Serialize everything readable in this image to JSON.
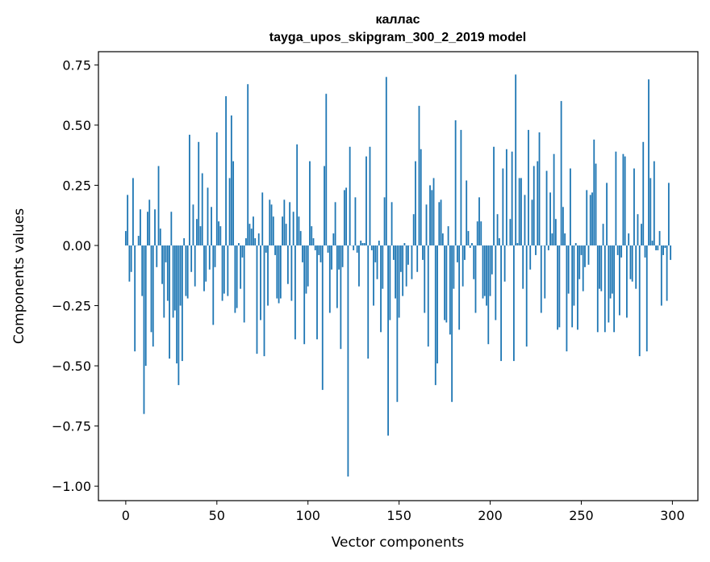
{
  "chart_data": {
    "type": "bar",
    "title": "каллас",
    "subtitle": "tayga_upos_skipgram_300_2_2019 model",
    "xlabel": "Vector components",
    "ylabel": "Components values",
    "xlim": [
      -15,
      314
    ],
    "ylim": [
      -1.06,
      0.805
    ],
    "xticks": [
      0,
      50,
      100,
      150,
      200,
      250,
      300
    ],
    "xtick_labels": [
      "0",
      "50",
      "100",
      "150",
      "200",
      "250",
      "300"
    ],
    "yticks": [
      0.75,
      0.5,
      0.25,
      0.0,
      -0.25,
      -0.5,
      -0.75,
      -1.0
    ],
    "ytick_labels": [
      "0.75",
      "0.50",
      "0.25",
      "0.00",
      "−0.25",
      "−0.50",
      "−0.75",
      "−1.00"
    ],
    "grid": false,
    "color": "#1f77b4",
    "values": [
      0.06,
      0.21,
      -0.15,
      -0.11,
      0.28,
      -0.44,
      0.0,
      0.04,
      0.15,
      -0.21,
      -0.7,
      -0.5,
      0.14,
      0.19,
      -0.36,
      -0.42,
      0.15,
      -0.09,
      0.33,
      0.07,
      -0.16,
      -0.3,
      -0.07,
      -0.23,
      -0.47,
      0.14,
      -0.3,
      -0.27,
      -0.49,
      -0.58,
      -0.25,
      -0.48,
      0.03,
      -0.21,
      -0.22,
      0.46,
      -0.11,
      0.17,
      -0.17,
      0.11,
      0.43,
      0.08,
      0.3,
      -0.19,
      -0.15,
      0.24,
      -0.1,
      0.16,
      -0.33,
      -0.09,
      0.47,
      0.1,
      0.08,
      -0.23,
      -0.2,
      0.62,
      -0.21,
      0.28,
      0.54,
      0.35,
      -0.28,
      -0.26,
      0.01,
      -0.18,
      -0.05,
      -0.32,
      0.03,
      0.67,
      0.09,
      0.07,
      0.12,
      0.03,
      -0.45,
      0.05,
      -0.31,
      0.22,
      -0.46,
      -0.03,
      -0.25,
      0.19,
      0.17,
      0.12,
      -0.04,
      -0.22,
      -0.24,
      -0.22,
      0.12,
      0.19,
      0.09,
      -0.16,
      0.18,
      -0.23,
      0.14,
      -0.39,
      0.42,
      0.12,
      0.06,
      -0.07,
      -0.41,
      -0.2,
      -0.17,
      0.35,
      0.08,
      0.03,
      -0.02,
      -0.39,
      -0.04,
      -0.07,
      -0.6,
      0.33,
      0.63,
      -0.03,
      -0.28,
      -0.1,
      0.05,
      0.18,
      -0.26,
      -0.1,
      -0.43,
      -0.09,
      0.23,
      0.24,
      -0.96,
      0.41,
      0.0,
      -0.02,
      0.2,
      -0.03,
      -0.17,
      0.02,
      0.01,
      0.01,
      0.37,
      -0.47,
      0.41,
      -0.02,
      -0.25,
      -0.07,
      -0.14,
      0.02,
      -0.36,
      -0.18,
      0.2,
      0.7,
      -0.79,
      -0.31,
      0.18,
      -0.06,
      -0.22,
      -0.65,
      -0.3,
      -0.11,
      -0.21,
      0.01,
      -0.17,
      -0.08,
      0.0,
      -0.14,
      0.13,
      0.35,
      -0.11,
      0.58,
      0.4,
      -0.06,
      -0.28,
      0.17,
      -0.42,
      0.25,
      0.23,
      0.28,
      -0.58,
      -0.49,
      0.18,
      0.19,
      0.05,
      -0.31,
      -0.32,
      0.08,
      -0.37,
      -0.65,
      -0.18,
      0.52,
      -0.07,
      -0.35,
      0.48,
      -0.17,
      -0.06,
      0.27,
      0.06,
      -0.01,
      0.01,
      -0.14,
      -0.28,
      0.1,
      0.2,
      0.1,
      -0.22,
      -0.21,
      -0.25,
      -0.41,
      -0.21,
      -0.12,
      0.41,
      -0.31,
      0.13,
      0.03,
      -0.48,
      0.32,
      -0.15,
      0.4,
      0.0,
      0.11,
      0.39,
      -0.48,
      0.71,
      0.01,
      0.28,
      0.28,
      -0.18,
      0.21,
      -0.42,
      0.48,
      -0.1,
      0.19,
      0.33,
      -0.04,
      0.35,
      0.47,
      -0.28,
      0.0,
      -0.22,
      0.31,
      -0.02,
      0.22,
      0.05,
      0.38,
      0.11,
      -0.35,
      -0.34,
      0.6,
      0.16,
      0.05,
      -0.44,
      -0.2,
      0.32,
      -0.34,
      -0.25,
      0.01,
      -0.35,
      -0.14,
      -0.04,
      -0.19,
      -0.09,
      0.23,
      -0.08,
      0.21,
      0.22,
      0.44,
      0.34,
      -0.36,
      -0.18,
      -0.19,
      0.09,
      -0.36,
      0.26,
      -0.32,
      -0.22,
      -0.2,
      -0.36,
      0.39,
      -0.04,
      -0.29,
      -0.05,
      0.38,
      0.37,
      -0.3,
      0.05,
      -0.14,
      -0.15,
      0.32,
      -0.18,
      0.13,
      -0.46,
      0.09,
      0.43,
      -0.05,
      -0.44,
      0.69,
      0.28,
      0.02,
      0.35,
      -0.02,
      -0.02,
      0.06,
      -0.25,
      -0.04,
      -0.01,
      -0.23,
      0.26,
      -0.06
    ]
  }
}
